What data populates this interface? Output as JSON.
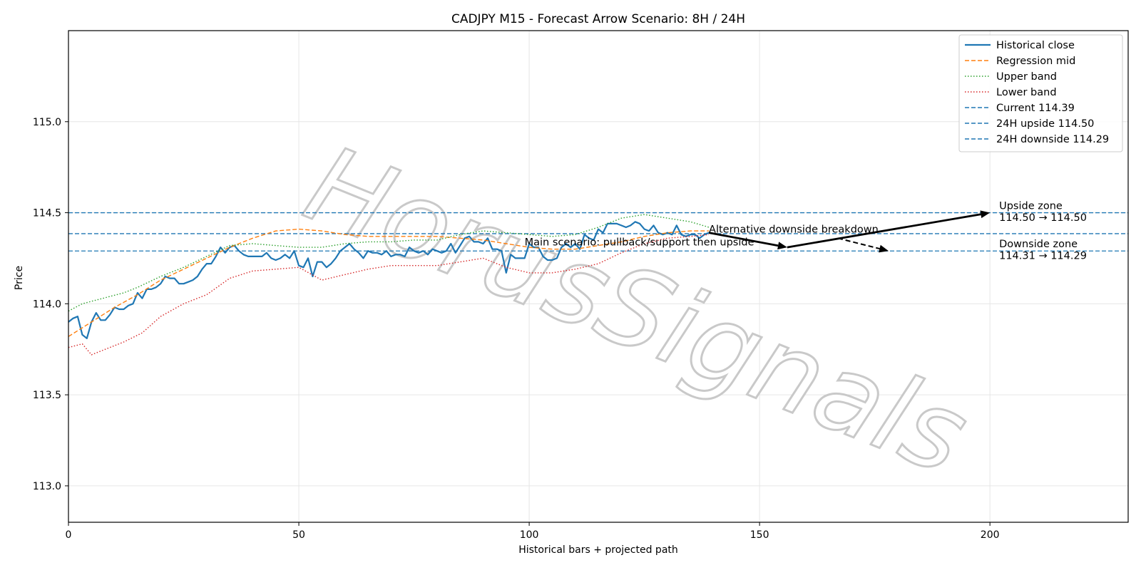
{
  "chart_data": {
    "type": "line",
    "title": "CADJPY M15 - Forecast Arrow Scenario: 8H / 24H",
    "xlabel": "Historical bars + projected path",
    "ylabel": "Price",
    "xlim": [
      0,
      230
    ],
    "ylim": [
      112.8,
      115.5
    ],
    "xticks": [
      0,
      50,
      100,
      150,
      200
    ],
    "xtick_labels": [
      "0",
      "50",
      "100",
      "150",
      "200"
    ],
    "yticks": [
      113.0,
      113.5,
      114.0,
      114.5,
      115.0
    ],
    "ytick_labels": [
      "113.0",
      "113.5",
      "114.0",
      "114.5",
      "115.0"
    ],
    "grid": true,
    "legend_position": "top-right",
    "series": [
      {
        "name": "Historical close",
        "color": "#1f77b4",
        "style": "solid",
        "x": [
          0,
          1,
          2,
          3,
          4,
          5,
          6,
          7,
          8,
          9,
          10,
          11,
          12,
          13,
          14,
          15,
          16,
          17,
          18,
          19,
          20,
          21,
          22,
          23,
          24,
          25,
          26,
          27,
          28,
          29,
          30,
          31,
          32,
          33,
          34,
          35,
          36,
          37,
          38,
          39,
          40,
          41,
          42,
          43,
          44,
          45,
          46,
          47,
          48,
          49,
          50,
          51,
          52,
          53,
          54,
          55,
          56,
          57,
          58,
          59,
          60,
          61,
          62,
          63,
          64,
          65,
          66,
          67,
          68,
          69,
          70,
          71,
          72,
          73,
          74,
          75,
          76,
          77,
          78,
          79,
          80,
          81,
          82,
          83,
          84,
          85,
          86,
          87,
          88,
          89,
          90,
          91,
          92,
          93,
          94,
          95,
          96,
          97,
          98,
          99,
          100,
          101,
          102,
          103,
          104,
          105,
          106,
          107,
          108,
          109,
          110,
          111,
          112,
          113,
          114,
          115,
          116,
          117,
          118,
          119,
          120,
          121,
          122,
          123,
          124,
          125,
          126,
          127,
          128,
          129,
          130,
          131,
          132,
          133,
          134,
          135,
          136,
          137,
          138,
          139
        ],
        "values": [
          113.9,
          113.92,
          113.93,
          113.83,
          113.81,
          113.9,
          113.95,
          113.91,
          113.91,
          113.94,
          113.98,
          113.97,
          113.97,
          113.99,
          114.0,
          114.06,
          114.03,
          114.08,
          114.08,
          114.09,
          114.11,
          114.15,
          114.14,
          114.14,
          114.11,
          114.11,
          114.12,
          114.13,
          114.15,
          114.19,
          114.22,
          114.22,
          114.26,
          114.31,
          114.28,
          114.31,
          114.32,
          114.29,
          114.27,
          114.26,
          114.26,
          114.26,
          114.26,
          114.28,
          114.25,
          114.24,
          114.25,
          114.27,
          114.25,
          114.29,
          114.21,
          114.2,
          114.25,
          114.15,
          114.23,
          114.23,
          114.2,
          114.22,
          114.25,
          114.29,
          114.31,
          114.33,
          114.3,
          114.28,
          114.25,
          114.29,
          114.28,
          114.28,
          114.27,
          114.29,
          114.26,
          114.27,
          114.27,
          114.26,
          114.31,
          114.29,
          114.28,
          114.29,
          114.27,
          114.3,
          114.29,
          114.28,
          114.29,
          114.33,
          114.28,
          114.32,
          114.36,
          114.37,
          114.34,
          114.34,
          114.33,
          114.36,
          114.3,
          114.3,
          114.29,
          114.17,
          114.27,
          114.25,
          114.25,
          114.25,
          114.33,
          114.31,
          114.31,
          114.26,
          114.24,
          114.24,
          114.25,
          114.31,
          114.33,
          114.31,
          114.33,
          114.3,
          114.38,
          114.36,
          114.35,
          114.41,
          114.39,
          114.44,
          114.44,
          114.44,
          114.43,
          114.42,
          114.43,
          114.45,
          114.44,
          114.41,
          114.4,
          114.43,
          114.39,
          114.38,
          114.39,
          114.38,
          114.43,
          114.38,
          114.37,
          114.38,
          114.38,
          114.36,
          114.38,
          114.39
        ]
      },
      {
        "name": "Regression mid",
        "color": "#ff7f0e",
        "style": "dashed",
        "x": [
          0,
          5,
          10,
          15,
          20,
          25,
          30,
          35,
          40,
          45,
          50,
          55,
          60,
          65,
          70,
          75,
          80,
          85,
          90,
          95,
          100,
          105,
          110,
          115,
          120,
          125,
          130,
          135,
          139
        ],
        "values": [
          113.82,
          113.9,
          113.98,
          114.05,
          114.13,
          114.19,
          114.25,
          114.31,
          114.36,
          114.4,
          114.41,
          114.4,
          114.38,
          114.37,
          114.37,
          114.37,
          114.37,
          114.36,
          114.35,
          114.33,
          114.31,
          114.3,
          114.3,
          114.32,
          114.34,
          114.37,
          114.39,
          114.4,
          114.4
        ]
      },
      {
        "name": "Upper band",
        "color": "#2ca02c",
        "style": "dotted",
        "x": [
          0,
          3,
          6,
          9,
          12,
          15,
          20,
          25,
          30,
          35,
          40,
          45,
          50,
          55,
          60,
          65,
          70,
          75,
          80,
          85,
          90,
          95,
          100,
          105,
          110,
          115,
          120,
          125,
          130,
          135,
          139
        ],
        "values": [
          113.96,
          114.0,
          114.02,
          114.04,
          114.06,
          114.09,
          114.15,
          114.2,
          114.26,
          114.32,
          114.33,
          114.32,
          114.31,
          114.31,
          114.33,
          114.34,
          114.34,
          114.35,
          114.35,
          114.38,
          114.4,
          114.39,
          114.38,
          114.37,
          114.38,
          114.42,
          114.47,
          114.49,
          114.47,
          114.45,
          114.42
        ]
      },
      {
        "name": "Lower band",
        "color": "#d62728",
        "style": "dotted",
        "x": [
          0,
          3,
          5,
          8,
          12,
          16,
          20,
          25,
          30,
          35,
          40,
          45,
          50,
          55,
          60,
          65,
          70,
          75,
          80,
          85,
          90,
          95,
          100,
          105,
          110,
          115,
          120,
          125,
          130,
          135,
          139
        ],
        "values": [
          113.76,
          113.78,
          113.72,
          113.75,
          113.79,
          113.84,
          113.93,
          114.0,
          114.05,
          114.14,
          114.18,
          114.19,
          114.2,
          114.13,
          114.16,
          114.19,
          114.21,
          114.21,
          114.21,
          114.23,
          114.25,
          114.2,
          114.17,
          114.17,
          114.19,
          114.22,
          114.28,
          114.33,
          114.36,
          114.37,
          114.38
        ]
      }
    ],
    "hlines": [
      {
        "name": "Current 114.39",
        "value": 114.385,
        "color": "#1f77b4"
      },
      {
        "name": "24H upside 114.50",
        "value": 114.5,
        "color": "#1f77b4"
      },
      {
        "name": "24H downside 114.29",
        "value": 114.29,
        "color": "#1f77b4"
      }
    ],
    "arrows": [
      {
        "from": [
          139,
          114.39
        ],
        "to": [
          156,
          114.31
        ],
        "style": "solid"
      },
      {
        "from": [
          156,
          114.31
        ],
        "to": [
          200,
          114.5
        ],
        "style": "solid"
      },
      {
        "from": [
          167,
          114.36
        ],
        "to": [
          178,
          114.29
        ],
        "style": "dashed"
      }
    ],
    "annotations": [
      {
        "id": "main",
        "text": "Main scenario: pullback/support then upside",
        "x": 99,
        "y": 114.32
      },
      {
        "id": "alt",
        "text": "Alternative downside breakdown",
        "x": 139,
        "y": 114.39
      },
      {
        "id": "upside",
        "lines": [
          "Upside zone",
          "114.50 → 114.50"
        ],
        "x": 202,
        "y": 114.52
      },
      {
        "id": "downside",
        "lines": [
          "Downside zone",
          "114.31 → 114.29"
        ],
        "x": 202,
        "y": 114.31
      }
    ],
    "watermark": "HorusSignals"
  }
}
